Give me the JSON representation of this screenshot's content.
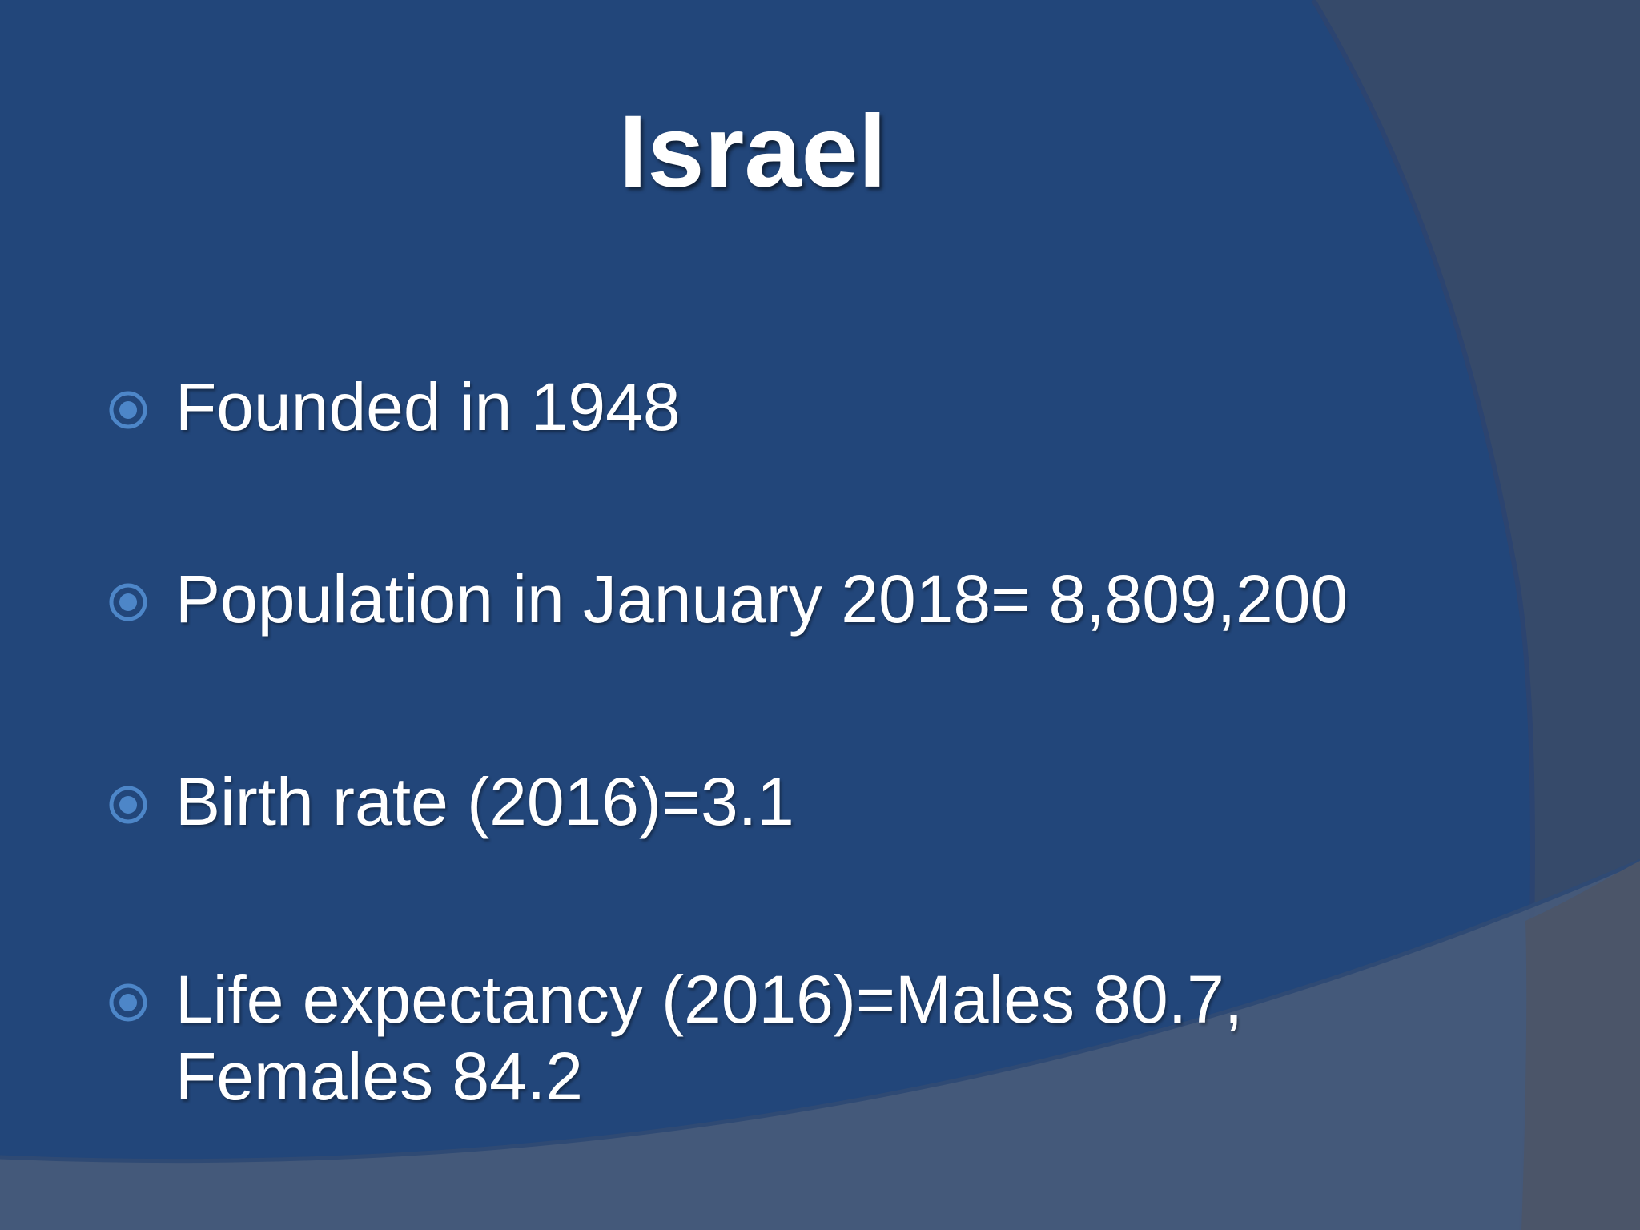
{
  "slide": {
    "title": "Israel",
    "bullets": [
      {
        "icon": "bullseye-bullet-icon",
        "lines": [
          "Founded in 1948"
        ]
      },
      {
        "icon": "bullseye-bullet-icon",
        "lines": [
          "Population in January 2018= 8,809,200"
        ]
      },
      {
        "icon": "bullseye-bullet-icon",
        "lines": [
          "Birth rate (2016)=3.1"
        ]
      },
      {
        "icon": "bullseye-bullet-icon",
        "lines": [
          "Life expectancy (2016)=Males 80.7,",
          "Females 84.2"
        ]
      }
    ]
  },
  "theme": {
    "background": "#22467a",
    "arc_outer": "#364a6a",
    "arc_bottom": "#46597a",
    "bullet_color": "#4d86c8",
    "text_color": "#ffffff"
  }
}
